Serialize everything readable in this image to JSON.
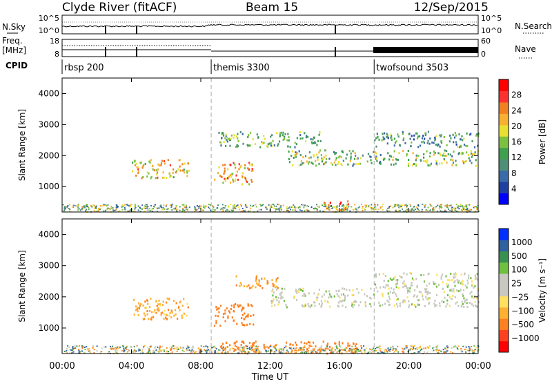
{
  "header": {
    "station": "Clyde River (fitACF)",
    "beam": "Beam 15",
    "date": "12/Sep/2015"
  },
  "noise_panel": {
    "left_label": "N.Sky",
    "right_label": "N.Search",
    "ticks_left": [
      "10^5",
      "10^0"
    ],
    "ticks_right": [
      "10^5",
      "10^0"
    ]
  },
  "freq_panel": {
    "left_label_line1": "Freq.",
    "left_label_line2": "[MHz]",
    "right_label": "Nave",
    "ticks_left": [
      "18",
      "8"
    ],
    "ticks_right": [
      "60",
      "0"
    ]
  },
  "cpid": {
    "label": "CPID",
    "segments": [
      {
        "name": "rbsp 200",
        "start_hour": 0.0
      },
      {
        "name": "themis 3300",
        "start_hour": 8.6
      },
      {
        "name": "twofsound 3503",
        "start_hour": 18.0
      }
    ]
  },
  "colors": {
    "power_scale": [
      "#0000ff",
      "#2040a0",
      "#3a6aa8",
      "#4f8f78",
      "#3fa050",
      "#7cc240",
      "#e8e030",
      "#f8b030",
      "#f08020",
      "#ff3030",
      "#ff0000"
    ],
    "velocity_scale": [
      "#ff0000",
      "#ff4020",
      "#ff8020",
      "#ffb030",
      "#ffe060",
      "#c8c8c0",
      "#c8c8c0",
      "#70c040",
      "#3a9050",
      "#3060a0",
      "#0030ff"
    ]
  },
  "chart_data": [
    {
      "type": "heatmap",
      "title": "Power",
      "xlabel": "Time UT",
      "ylabel": "Slant Range [km]",
      "xlim": [
        0,
        24
      ],
      "ylim": [
        180,
        4500
      ],
      "x_ticks": [
        "00:00",
        "04:00",
        "08:00",
        "12:00",
        "16:00",
        "20:00",
        "00:00"
      ],
      "y_ticks": [
        1000,
        2000,
        3000,
        4000
      ],
      "colorbar": {
        "label": "Power [dB]",
        "ticks": [
          "4",
          "8",
          "12",
          "16",
          "20",
          "24",
          "28"
        ],
        "range": [
          0,
          30
        ]
      },
      "echo_regions": [
        {
          "t0": 4.0,
          "t1": 7.3,
          "r0": 1300,
          "r1": 1900,
          "level": 20
        },
        {
          "t0": 8.7,
          "t1": 11.0,
          "r0": 1100,
          "r1": 1800,
          "level": 22
        },
        {
          "t0": 9.0,
          "t1": 15.0,
          "r0": 2300,
          "r1": 2800,
          "level": 12
        },
        {
          "t0": 13.0,
          "t1": 24.0,
          "r0": 1700,
          "r1": 2200,
          "level": 14
        },
        {
          "t0": 18.0,
          "t1": 24.0,
          "r0": 2300,
          "r1": 2800,
          "level": 10
        },
        {
          "t0": 15.0,
          "t1": 16.5,
          "r0": 250,
          "r1": 600,
          "level": 24
        }
      ]
    },
    {
      "type": "heatmap",
      "title": "Velocity",
      "xlabel": "Time UT",
      "ylabel": "Slant Range [km]",
      "xlim": [
        0,
        24
      ],
      "ylim": [
        180,
        4500
      ],
      "x_ticks": [
        "00:00",
        "04:00",
        "08:00",
        "12:00",
        "16:00",
        "20:00",
        "00:00"
      ],
      "y_ticks": [
        1000,
        2000,
        3000,
        4000
      ],
      "colorbar": {
        "label": "Velocity [m s⁻¹]",
        "ticks": [
          "1000",
          "500",
          "100",
          "25",
          "−25",
          "−100",
          "−500",
          "−1000"
        ]
      },
      "echo_regions": [
        {
          "t0": 4.0,
          "t1": 7.3,
          "r0": 1300,
          "r1": 2000,
          "velocity": -80
        },
        {
          "t0": 8.7,
          "t1": 11.0,
          "r0": 1100,
          "r1": 1800,
          "velocity": -400
        },
        {
          "t0": 10.0,
          "t1": 12.5,
          "r0": 2300,
          "r1": 2700,
          "velocity": -100
        },
        {
          "t0": 12.0,
          "t1": 24.0,
          "r0": 1700,
          "r1": 2300,
          "velocity": 0
        },
        {
          "t0": 18.0,
          "t1": 24.0,
          "r0": 2300,
          "r1": 2800,
          "velocity": 0
        },
        {
          "t0": 9.0,
          "t1": 17.0,
          "r0": 200,
          "r1": 600,
          "velocity": -150
        }
      ]
    }
  ]
}
